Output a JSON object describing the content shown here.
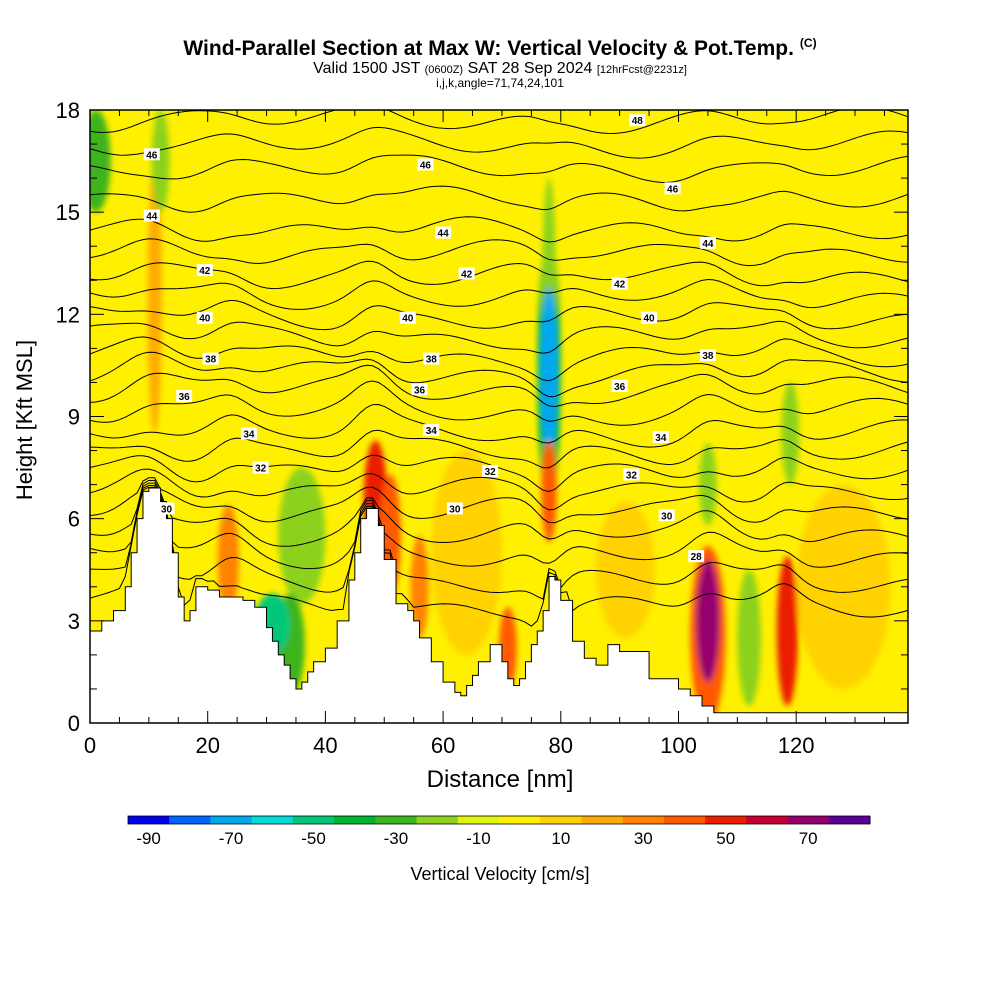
{
  "header": {
    "title": "Wind-Parallel Section at Max W: Vertical Velocity & Pot.Temp.",
    "copyright": "(C)",
    "subtitle_main": "Valid 1500 JST",
    "subtitle_zulu": "(0600Z)",
    "subtitle_date": "SAT 28 Sep 2024",
    "subtitle_fcst": "[12hrFcst@2231z]",
    "meta": "i,j,k,angle=71,74,24,101"
  },
  "chart_data": {
    "type": "heatmap",
    "title": "Wind-Parallel Section at Max W: Vertical Velocity & Pot.Temp.",
    "xlabel": "Distance [nm]",
    "ylabel": "Height [Kft MSL]",
    "xlim": [
      0,
      139
    ],
    "ylim": [
      0,
      18
    ],
    "xticks": [
      0,
      20,
      40,
      60,
      80,
      100,
      120
    ],
    "yticks": [
      0,
      3,
      6,
      9,
      12,
      15,
      18
    ],
    "grid": false,
    "colorbar": {
      "label": "Vertical Velocity [cm/s]",
      "levels": [
        -90,
        -80,
        -70,
        -60,
        -50,
        -40,
        -30,
        -20,
        -10,
        0,
        10,
        20,
        30,
        40,
        50,
        60,
        70,
        80
      ],
      "tick_labels": [
        -90,
        -70,
        -50,
        -30,
        -10,
        10,
        30,
        50,
        70
      ],
      "colors": [
        "#0000ee",
        "#0066ff",
        "#00a8f0",
        "#00dcdc",
        "#00c878",
        "#00b432",
        "#3cb41e",
        "#8cd21e",
        "#e1f50a",
        "#fff000",
        "#ffd200",
        "#ffaa00",
        "#ff8200",
        "#ff5a00",
        "#eb1e00",
        "#c80032",
        "#96006e",
        "#5a0096"
      ]
    },
    "background_value_cm_s": 5,
    "vertical_velocity_features": [
      {
        "x": 1,
        "y": 16.5,
        "w": 2.5,
        "h": 1.5,
        "value": -25
      },
      {
        "x": 12,
        "y": 16.5,
        "w": 1.5,
        "h": 1.5,
        "value": -15
      },
      {
        "x": 11,
        "y": 12.5,
        "w": 1.2,
        "h": 4.0,
        "value": 20
      },
      {
        "x": 23.5,
        "y": 4.8,
        "w": 1.8,
        "h": 1.6,
        "value": 35
      },
      {
        "x": 31,
        "y": 2.9,
        "w": 3.0,
        "h": 0.9,
        "value": -50
      },
      {
        "x": 34,
        "y": 2.3,
        "w": 2.5,
        "h": 1.5,
        "value": -30
      },
      {
        "x": 48.5,
        "y": 6.5,
        "w": 2.0,
        "h": 1.8,
        "value": 50
      },
      {
        "x": 51,
        "y": 5.5,
        "w": 1.8,
        "h": 1.8,
        "value": 40
      },
      {
        "x": 56,
        "y": 4.0,
        "w": 1.5,
        "h": 1.5,
        "value": 35
      },
      {
        "x": 71,
        "y": 2.2,
        "w": 1.5,
        "h": 1.2,
        "value": 40
      },
      {
        "x": 78,
        "y": 10.3,
        "w": 1.5,
        "h": 2.5,
        "value": -70
      },
      {
        "x": 78,
        "y": 10.3,
        "w": 2.0,
        "h": 4.0,
        "value": -40
      },
      {
        "x": 78,
        "y": 12.5,
        "w": 1.2,
        "h": 3.5,
        "value": -20
      },
      {
        "x": 78,
        "y": 6.8,
        "w": 1.3,
        "h": 1.5,
        "value": 45
      },
      {
        "x": 105,
        "y": 3.0,
        "w": 2.0,
        "h": 1.8,
        "value": 70
      },
      {
        "x": 105,
        "y": 2.6,
        "w": 3.0,
        "h": 2.6,
        "value": 45
      },
      {
        "x": 112,
        "y": 2.5,
        "w": 2.0,
        "h": 2.0,
        "value": -15
      },
      {
        "x": 118.5,
        "y": 2.7,
        "w": 1.8,
        "h": 2.2,
        "value": 55
      },
      {
        "x": 119,
        "y": 8.5,
        "w": 1.5,
        "h": 1.5,
        "value": -15
      },
      {
        "x": 105,
        "y": 7.0,
        "w": 1.5,
        "h": 1.2,
        "value": -15
      },
      {
        "x": 36,
        "y": 5.5,
        "w": 4.0,
        "h": 2.0,
        "value": -12
      },
      {
        "x": 64,
        "y": 5.0,
        "w": 6.0,
        "h": 3.0,
        "value": 15
      },
      {
        "x": 91,
        "y": 4.5,
        "w": 5.0,
        "h": 2.0,
        "value": 15
      },
      {
        "x": 128,
        "y": 4.0,
        "w": 8.0,
        "h": 3.0,
        "value": 12
      }
    ],
    "terrain_kft": {
      "x": [
        0,
        2,
        4,
        6,
        7,
        8,
        9,
        10,
        12,
        13,
        14,
        15,
        16,
        17,
        18,
        20,
        22,
        24,
        26,
        28,
        30,
        31,
        32,
        33,
        34,
        35,
        36,
        37,
        38,
        40,
        42,
        44,
        45,
        46,
        47,
        48,
        49,
        50,
        52,
        54,
        55,
        56,
        58,
        60,
        62,
        63,
        64,
        65,
        66,
        68,
        69,
        70,
        71,
        72,
        73,
        74,
        75,
        76,
        77,
        78,
        79,
        80,
        82,
        84,
        86,
        88,
        90,
        95,
        100,
        102,
        104,
        106,
        110,
        120,
        139
      ],
      "y": [
        2.7,
        3.0,
        3.3,
        4.0,
        5.0,
        6.0,
        6.8,
        6.9,
        6.5,
        6.0,
        5.0,
        3.7,
        3.0,
        3.3,
        4.0,
        3.9,
        3.7,
        3.7,
        3.6,
        3.4,
        2.8,
        2.4,
        2.0,
        1.7,
        1.3,
        1.0,
        1.2,
        1.5,
        1.8,
        2.2,
        3.0,
        4.2,
        5.0,
        6.0,
        6.3,
        6.3,
        5.8,
        4.8,
        3.5,
        3.3,
        3.0,
        2.5,
        1.8,
        1.2,
        0.9,
        0.8,
        1.1,
        1.4,
        1.8,
        2.3,
        2.3,
        1.8,
        1.3,
        1.1,
        1.3,
        1.8,
        2.3,
        2.7,
        3.3,
        4.3,
        4.2,
        3.6,
        2.4,
        1.9,
        1.7,
        2.3,
        2.1,
        1.3,
        1.0,
        0.8,
        0.5,
        0.3,
        0.3,
        0.3,
        0.3
      ]
    },
    "potential_temperature_contours": {
      "unit": "none printed",
      "interval": 1,
      "labeled_levels": [
        {
          "level": 48,
          "x": 93,
          "y": 17.7
        },
        {
          "level": 46,
          "x": 10.5,
          "y": 16.7
        },
        {
          "level": 46,
          "x": 57,
          "y": 16.4
        },
        {
          "level": 46,
          "x": 99,
          "y": 15.7
        },
        {
          "level": 44,
          "x": 10.5,
          "y": 14.9
        },
        {
          "level": 44,
          "x": 60,
          "y": 14.4
        },
        {
          "level": 44,
          "x": 105,
          "y": 14.1
        },
        {
          "level": 42,
          "x": 19.5,
          "y": 13.3
        },
        {
          "level": 42,
          "x": 64,
          "y": 13.2
        },
        {
          "level": 42,
          "x": 90,
          "y": 12.9
        },
        {
          "level": 40,
          "x": 19.5,
          "y": 11.9
        },
        {
          "level": 40,
          "x": 54,
          "y": 11.9
        },
        {
          "level": 40,
          "x": 95,
          "y": 11.9
        },
        {
          "level": 38,
          "x": 20.5,
          "y": 10.7
        },
        {
          "level": 38,
          "x": 58,
          "y": 10.7
        },
        {
          "level": 38,
          "x": 105,
          "y": 10.8
        },
        {
          "level": 36,
          "x": 16,
          "y": 9.6
        },
        {
          "level": 36,
          "x": 56,
          "y": 9.8
        },
        {
          "level": 36,
          "x": 90,
          "y": 9.9
        },
        {
          "level": 34,
          "x": 27,
          "y": 8.5
        },
        {
          "level": 34,
          "x": 58,
          "y": 8.6
        },
        {
          "level": 34,
          "x": 97,
          "y": 8.4
        },
        {
          "level": 32,
          "x": 29,
          "y": 7.5
        },
        {
          "level": 32,
          "x": 68,
          "y": 7.4
        },
        {
          "level": 32,
          "x": 92,
          "y": 7.3
        },
        {
          "level": 30,
          "x": 13,
          "y": 6.3
        },
        {
          "level": 30,
          "x": 62,
          "y": 6.3
        },
        {
          "level": 30,
          "x": 98,
          "y": 6.1
        },
        {
          "level": 28,
          "x": 103,
          "y": 4.9
        }
      ]
    }
  }
}
